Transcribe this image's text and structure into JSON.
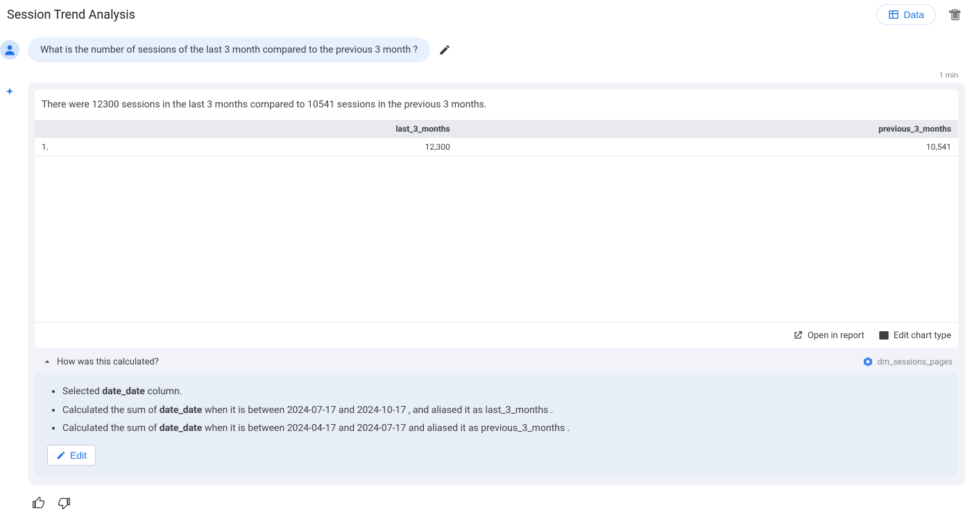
{
  "header": {
    "title": "Session Trend Analysis",
    "data_button_label": "Data"
  },
  "prompt": {
    "text": "What is the number of sessions of the last 3 month compared to the previous 3 month ?"
  },
  "timestamp": "1 min",
  "answer": {
    "summary": "There were 12300 sessions in the last 3 months compared to 10541 sessions in the previous 3 months."
  },
  "table": {
    "type": "table",
    "columns": [
      "last_3_months",
      "previous_3_months"
    ],
    "rows": [
      {
        "index": "1.",
        "last_3_months": "12,300",
        "previous_3_months": "10,541"
      }
    ],
    "header_bg": "#e8eaed",
    "border_color": "#e8eaed",
    "text_color": "#3c4043",
    "font_size_pt": 9,
    "alignment": [
      "left",
      "right",
      "right"
    ]
  },
  "card_actions": {
    "open_in_report": "Open in report",
    "edit_chart_type": "Edit chart type"
  },
  "calculation": {
    "toggle_label": "How was this calculated?",
    "source_label": "dm_sessions_pages",
    "steps_html": [
      "Selected <b>date_date</b> column.",
      "Calculated the sum of <b>date_date</b> when it is between 2024-07-17 and 2024-10-17 , and aliased it as last_3_months .",
      "Calculated the sum of <b>date_date</b> when it is between 2024-04-17 and 2024-07-17 and aliased it as previous_3_months ."
    ],
    "edit_label": "Edit"
  },
  "colors": {
    "accent": "#1a73e8",
    "bubble_bg": "#e8f0fe",
    "card_bg": "#f1f3f9",
    "calc_bg": "#e8eef7",
    "muted": "#80868b",
    "text": "#3c4043"
  }
}
